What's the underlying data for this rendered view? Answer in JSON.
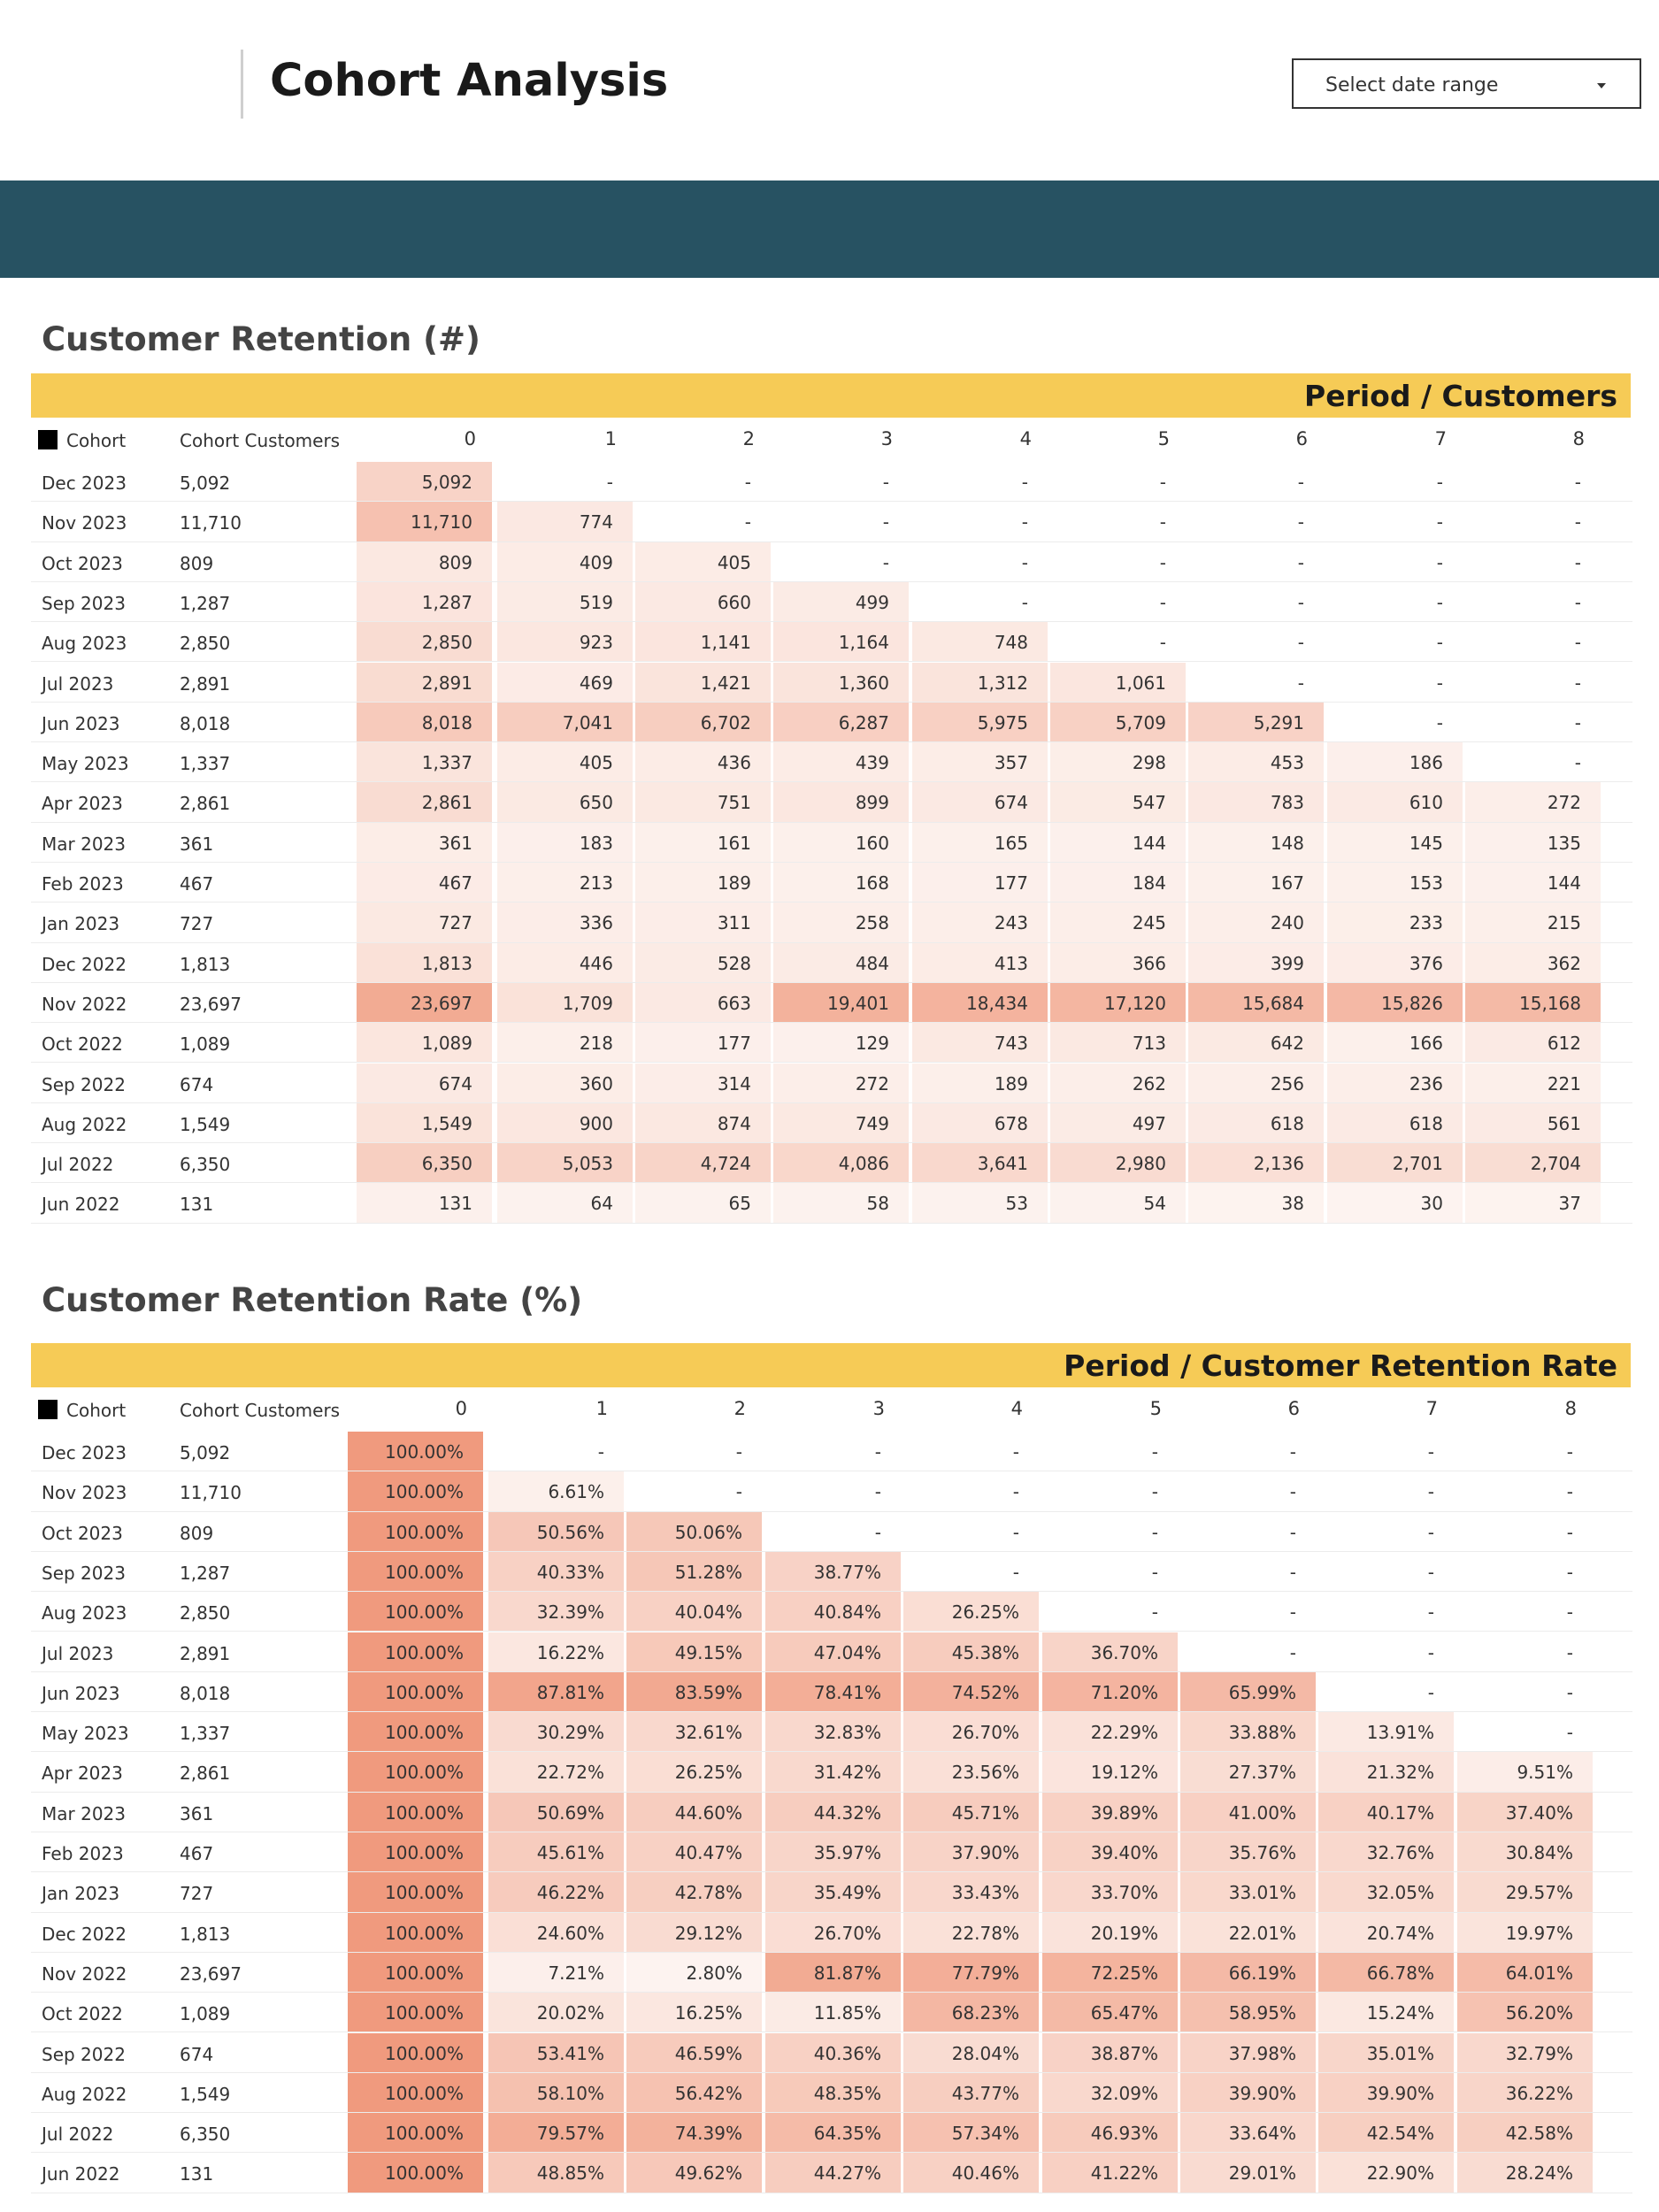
{
  "header": {
    "title": "Cohort Analysis",
    "date_range_placeholder": "Select date range"
  },
  "retention_count": {
    "title": "Customer Retention (#)",
    "period_label": "Period / Customers",
    "col_cohort": "Cohort",
    "col_customers": "Cohort Customers",
    "periods": [
      "0",
      "1",
      "2",
      "3",
      "4",
      "5",
      "6",
      "7",
      "8"
    ],
    "rows": [
      {
        "cohort": "Dec 2023",
        "customers": "5,092",
        "values": [
          "5,092",
          "-",
          "-",
          "-",
          "-",
          "-",
          "-",
          "-",
          "-"
        ]
      },
      {
        "cohort": "Nov 2023",
        "customers": "11,710",
        "values": [
          "11,710",
          "774",
          "-",
          "-",
          "-",
          "-",
          "-",
          "-",
          "-"
        ]
      },
      {
        "cohort": "Oct 2023",
        "customers": "809",
        "values": [
          "809",
          "409",
          "405",
          "-",
          "-",
          "-",
          "-",
          "-",
          "-"
        ]
      },
      {
        "cohort": "Sep 2023",
        "customers": "1,287",
        "values": [
          "1,287",
          "519",
          "660",
          "499",
          "-",
          "-",
          "-",
          "-",
          "-"
        ]
      },
      {
        "cohort": "Aug 2023",
        "customers": "2,850",
        "values": [
          "2,850",
          "923",
          "1,141",
          "1,164",
          "748",
          "-",
          "-",
          "-",
          "-"
        ]
      },
      {
        "cohort": "Jul 2023",
        "customers": "2,891",
        "values": [
          "2,891",
          "469",
          "1,421",
          "1,360",
          "1,312",
          "1,061",
          "-",
          "-",
          "-"
        ]
      },
      {
        "cohort": "Jun 2023",
        "customers": "8,018",
        "values": [
          "8,018",
          "7,041",
          "6,702",
          "6,287",
          "5,975",
          "5,709",
          "5,291",
          "-",
          "-"
        ]
      },
      {
        "cohort": "May 2023",
        "customers": "1,337",
        "values": [
          "1,337",
          "405",
          "436",
          "439",
          "357",
          "298",
          "453",
          "186",
          "-"
        ]
      },
      {
        "cohort": "Apr 2023",
        "customers": "2,861",
        "values": [
          "2,861",
          "650",
          "751",
          "899",
          "674",
          "547",
          "783",
          "610",
          "272"
        ]
      },
      {
        "cohort": "Mar 2023",
        "customers": "361",
        "values": [
          "361",
          "183",
          "161",
          "160",
          "165",
          "144",
          "148",
          "145",
          "135"
        ]
      },
      {
        "cohort": "Feb 2023",
        "customers": "467",
        "values": [
          "467",
          "213",
          "189",
          "168",
          "177",
          "184",
          "167",
          "153",
          "144"
        ]
      },
      {
        "cohort": "Jan 2023",
        "customers": "727",
        "values": [
          "727",
          "336",
          "311",
          "258",
          "243",
          "245",
          "240",
          "233",
          "215"
        ]
      },
      {
        "cohort": "Dec 2022",
        "customers": "1,813",
        "values": [
          "1,813",
          "446",
          "528",
          "484",
          "413",
          "366",
          "399",
          "376",
          "362"
        ]
      },
      {
        "cohort": "Nov 2022",
        "customers": "23,697",
        "values": [
          "23,697",
          "1,709",
          "663",
          "19,401",
          "18,434",
          "17,120",
          "15,684",
          "15,826",
          "15,168"
        ]
      },
      {
        "cohort": "Oct 2022",
        "customers": "1,089",
        "values": [
          "1,089",
          "218",
          "177",
          "129",
          "743",
          "713",
          "642",
          "166",
          "612"
        ]
      },
      {
        "cohort": "Sep 2022",
        "customers": "674",
        "values": [
          "674",
          "360",
          "314",
          "272",
          "189",
          "262",
          "256",
          "236",
          "221"
        ]
      },
      {
        "cohort": "Aug 2022",
        "customers": "1,549",
        "values": [
          "1,549",
          "900",
          "874",
          "749",
          "678",
          "497",
          "618",
          "618",
          "561"
        ]
      },
      {
        "cohort": "Jul 2022",
        "customers": "6,350",
        "values": [
          "6,350",
          "5,053",
          "4,724",
          "4,086",
          "3,641",
          "2,980",
          "2,136",
          "2,701",
          "2,704"
        ]
      },
      {
        "cohort": "Jun 2022",
        "customers": "131",
        "values": [
          "131",
          "64",
          "65",
          "58",
          "53",
          "54",
          "38",
          "30",
          "37"
        ]
      }
    ]
  },
  "retention_rate": {
    "title": "Customer Retention Rate (%)",
    "period_label": "Period / Customer Retention Rate",
    "col_cohort": "Cohort",
    "col_customers": "Cohort Customers",
    "periods": [
      "0",
      "1",
      "2",
      "3",
      "4",
      "5",
      "6",
      "7",
      "8"
    ],
    "rows": [
      {
        "cohort": "Dec 2023",
        "customers": "5,092",
        "values": [
          "100.00%",
          "-",
          "-",
          "-",
          "-",
          "-",
          "-",
          "-",
          "-"
        ]
      },
      {
        "cohort": "Nov 2023",
        "customers": "11,710",
        "values": [
          "100.00%",
          "6.61%",
          "-",
          "-",
          "-",
          "-",
          "-",
          "-",
          "-"
        ]
      },
      {
        "cohort": "Oct 2023",
        "customers": "809",
        "values": [
          "100.00%",
          "50.56%",
          "50.06%",
          "-",
          "-",
          "-",
          "-",
          "-",
          "-"
        ]
      },
      {
        "cohort": "Sep 2023",
        "customers": "1,287",
        "values": [
          "100.00%",
          "40.33%",
          "51.28%",
          "38.77%",
          "-",
          "-",
          "-",
          "-",
          "-"
        ]
      },
      {
        "cohort": "Aug 2023",
        "customers": "2,850",
        "values": [
          "100.00%",
          "32.39%",
          "40.04%",
          "40.84%",
          "26.25%",
          "-",
          "-",
          "-",
          "-"
        ]
      },
      {
        "cohort": "Jul 2023",
        "customers": "2,891",
        "values": [
          "100.00%",
          "16.22%",
          "49.15%",
          "47.04%",
          "45.38%",
          "36.70%",
          "-",
          "-",
          "-"
        ]
      },
      {
        "cohort": "Jun 2023",
        "customers": "8,018",
        "values": [
          "100.00%",
          "87.81%",
          "83.59%",
          "78.41%",
          "74.52%",
          "71.20%",
          "65.99%",
          "-",
          "-"
        ]
      },
      {
        "cohort": "May 2023",
        "customers": "1,337",
        "values": [
          "100.00%",
          "30.29%",
          "32.61%",
          "32.83%",
          "26.70%",
          "22.29%",
          "33.88%",
          "13.91%",
          "-"
        ]
      },
      {
        "cohort": "Apr 2023",
        "customers": "2,861",
        "values": [
          "100.00%",
          "22.72%",
          "26.25%",
          "31.42%",
          "23.56%",
          "19.12%",
          "27.37%",
          "21.32%",
          "9.51%"
        ]
      },
      {
        "cohort": "Mar 2023",
        "customers": "361",
        "values": [
          "100.00%",
          "50.69%",
          "44.60%",
          "44.32%",
          "45.71%",
          "39.89%",
          "41.00%",
          "40.17%",
          "37.40%"
        ]
      },
      {
        "cohort": "Feb 2023",
        "customers": "467",
        "values": [
          "100.00%",
          "45.61%",
          "40.47%",
          "35.97%",
          "37.90%",
          "39.40%",
          "35.76%",
          "32.76%",
          "30.84%"
        ]
      },
      {
        "cohort": "Jan 2023",
        "customers": "727",
        "values": [
          "100.00%",
          "46.22%",
          "42.78%",
          "35.49%",
          "33.43%",
          "33.70%",
          "33.01%",
          "32.05%",
          "29.57%"
        ]
      },
      {
        "cohort": "Dec 2022",
        "customers": "1,813",
        "values": [
          "100.00%",
          "24.60%",
          "29.12%",
          "26.70%",
          "22.78%",
          "20.19%",
          "22.01%",
          "20.74%",
          "19.97%"
        ]
      },
      {
        "cohort": "Nov 2022",
        "customers": "23,697",
        "values": [
          "100.00%",
          "7.21%",
          "2.80%",
          "81.87%",
          "77.79%",
          "72.25%",
          "66.19%",
          "66.78%",
          "64.01%"
        ]
      },
      {
        "cohort": "Oct 2022",
        "customers": "1,089",
        "values": [
          "100.00%",
          "20.02%",
          "16.25%",
          "11.85%",
          "68.23%",
          "65.47%",
          "58.95%",
          "15.24%",
          "56.20%"
        ]
      },
      {
        "cohort": "Sep 2022",
        "customers": "674",
        "values": [
          "100.00%",
          "53.41%",
          "46.59%",
          "40.36%",
          "28.04%",
          "38.87%",
          "37.98%",
          "35.01%",
          "32.79%"
        ]
      },
      {
        "cohort": "Aug 2022",
        "customers": "1,549",
        "values": [
          "100.00%",
          "58.10%",
          "56.42%",
          "48.35%",
          "43.77%",
          "32.09%",
          "39.90%",
          "39.90%",
          "36.22%"
        ]
      },
      {
        "cohort": "Jul 2022",
        "customers": "6,350",
        "values": [
          "100.00%",
          "79.57%",
          "74.39%",
          "64.35%",
          "57.34%",
          "46.93%",
          "33.64%",
          "42.54%",
          "42.58%"
        ]
      },
      {
        "cohort": "Jun 2022",
        "customers": "131",
        "values": [
          "100.00%",
          "48.85%",
          "49.62%",
          "44.27%",
          "40.46%",
          "41.22%",
          "29.01%",
          "22.90%",
          "28.24%"
        ]
      }
    ]
  },
  "colors": {
    "banner": "#275262",
    "period_bar": "#f6cb56",
    "heat_max": "#f09a7e",
    "heat_min": "#fdf6f3"
  }
}
